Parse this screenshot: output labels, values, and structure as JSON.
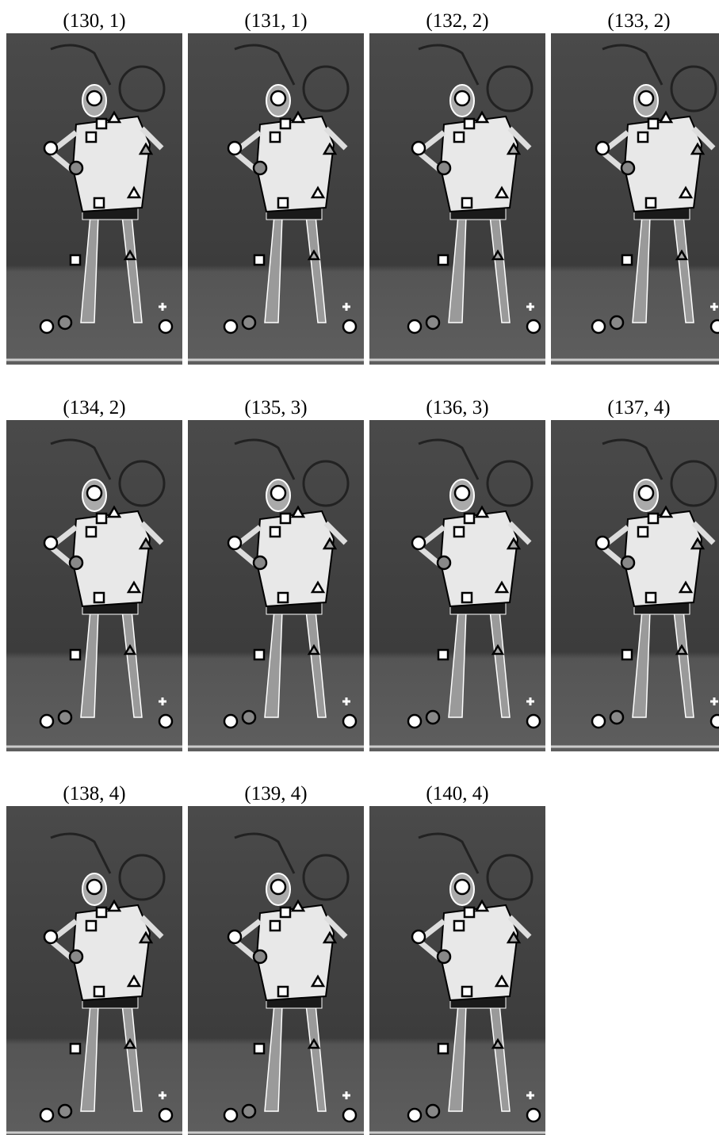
{
  "labels": [
    "(130, 1)",
    "(131, 1)",
    "(132, 2)",
    "(133, 2)",
    "(134, 2)",
    "(135, 3)",
    "(136, 3)",
    "(137, 4)",
    "(138, 4)",
    "(139, 4)",
    "(140, 4)"
  ]
}
